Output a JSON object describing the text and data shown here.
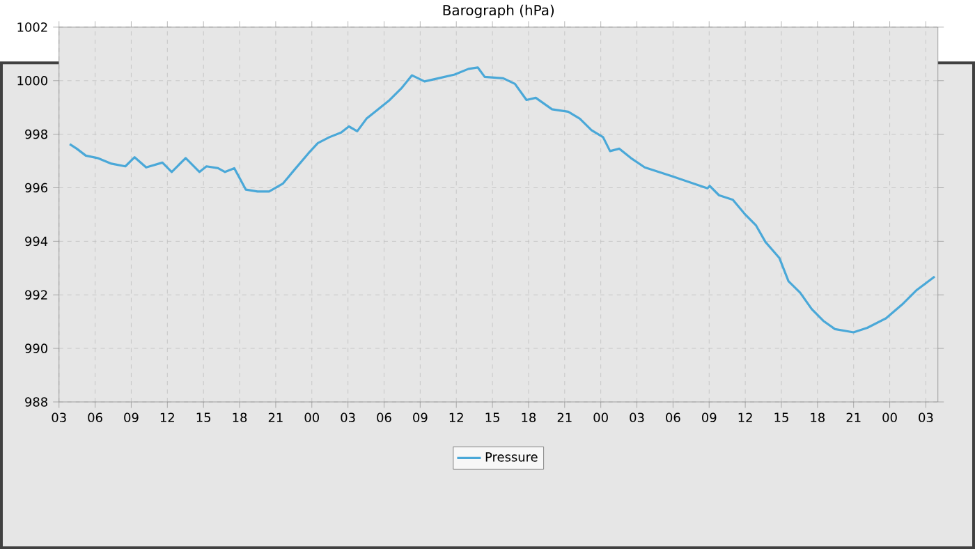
{
  "chart_data": {
    "type": "line",
    "title": "Barograph (hPa)",
    "x": [
      3.89,
      4.47,
      5.23,
      6.2,
      7.35,
      8.51,
      9.28,
      10.24,
      11.59,
      12.36,
      13.52,
      14.67,
      15.25,
      16.21,
      16.79,
      17.56,
      18.52,
      19.49,
      20.45,
      21.61,
      22.57,
      23.72,
      24.5,
      25.46,
      26.43,
      27.08,
      27.77,
      28.54,
      29.5,
      30.47,
      31.43,
      32.32,
      33.36,
      34.51,
      35.86,
      37.01,
      37.79,
      38.36,
      39.9,
      40.87,
      41.83,
      42.6,
      43.95,
      45.3,
      46.26,
      47.23,
      48.19,
      48.77,
      49.54,
      50.5,
      51.65,
      53.97,
      56.86,
      57.05,
      57.82,
      58.97,
      59.94,
      60.9,
      61.67,
      62.83,
      63.59,
      64.56,
      65.52,
      66.48,
      67.45,
      68.99,
      70.14,
      71.68,
      73.03,
      74.19,
      75.73
    ],
    "series": [
      {
        "name": "Pressure",
        "color": "#4aa8d8",
        "values": [
          997.63,
          997.46,
          997.2,
          997.11,
          996.9,
          996.8,
          997.14,
          996.76,
          996.94,
          996.59,
          997.11,
          996.59,
          996.8,
          996.73,
          996.59,
          996.73,
          995.93,
          995.86,
          995.86,
          996.16,
          996.68,
          997.29,
          997.67,
          997.89,
          998.06,
          998.29,
          998.11,
          998.58,
          998.93,
          999.28,
          999.71,
          1000.2,
          999.97,
          1000.09,
          1000.23,
          1000.44,
          1000.49,
          1000.14,
          1000.09,
          999.88,
          999.28,
          999.36,
          998.93,
          998.84,
          998.58,
          998.15,
          997.89,
          997.37,
          997.46,
          997.11,
          996.76,
          996.42,
          995.98,
          996.07,
          995.72,
          995.55,
          995.03,
          994.59,
          993.98,
          993.38,
          992.51,
          992.08,
          991.47,
          991.03,
          990.72,
          990.6,
          990.77,
          991.12,
          991.64,
          992.16,
          992.68
        ]
      }
    ],
    "xlim": [
      3,
      76
    ],
    "xticks": [
      {
        "value": 3,
        "label": "03"
      },
      {
        "value": 6,
        "label": "06"
      },
      {
        "value": 9,
        "label": "09"
      },
      {
        "value": 12,
        "label": "12"
      },
      {
        "value": 15,
        "label": "15"
      },
      {
        "value": 18,
        "label": "18"
      },
      {
        "value": 21,
        "label": "21"
      },
      {
        "value": 24,
        "label": "00"
      },
      {
        "value": 27,
        "label": "03"
      },
      {
        "value": 30,
        "label": "06"
      },
      {
        "value": 33,
        "label": "09"
      },
      {
        "value": 36,
        "label": "12"
      },
      {
        "value": 39,
        "label": "15"
      },
      {
        "value": 42,
        "label": "18"
      },
      {
        "value": 45,
        "label": "21"
      },
      {
        "value": 48,
        "label": "00"
      },
      {
        "value": 51,
        "label": "03"
      },
      {
        "value": 54,
        "label": "06"
      },
      {
        "value": 57,
        "label": "09"
      },
      {
        "value": 60,
        "label": "12"
      },
      {
        "value": 63,
        "label": "15"
      },
      {
        "value": 66,
        "label": "18"
      },
      {
        "value": 69,
        "label": "21"
      },
      {
        "value": 72,
        "label": "00"
      },
      {
        "value": 75,
        "label": "03"
      }
    ],
    "ylim": [
      988,
      1002
    ],
    "yticks": [
      988,
      990,
      992,
      994,
      996,
      998,
      1000,
      1002
    ],
    "grid": true,
    "legend": "bottom",
    "marker": "none",
    "line_style": "solid"
  }
}
